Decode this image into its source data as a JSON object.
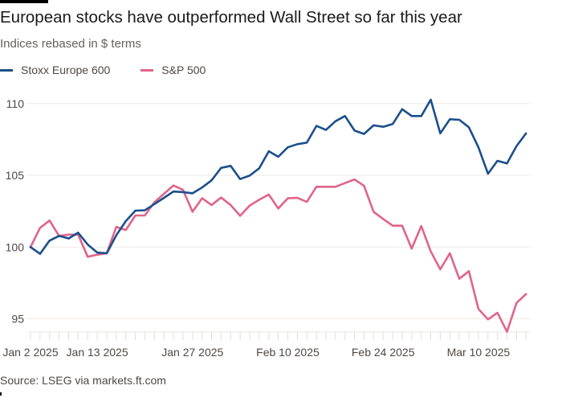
{
  "chart_data": {
    "type": "line",
    "title": "European stocks have outperformed Wall Street so far this year",
    "subtitle": "Indices rebased in $ terms",
    "xlabel": "",
    "ylabel": "",
    "ylim": [
      94,
      110.6
    ],
    "yticks": [
      95,
      100,
      105,
      110
    ],
    "grid": true,
    "legend_placement": "top-left",
    "x_count": 53,
    "xticks": [
      {
        "index": 0,
        "label": "Jan 2 2025"
      },
      {
        "index": 7,
        "label": "Jan 13 2025"
      },
      {
        "index": 17,
        "label": "Jan 27 2025"
      },
      {
        "index": 27,
        "label": "Feb 10 2025"
      },
      {
        "index": 37,
        "label": "Feb 24 2025"
      },
      {
        "index": 47,
        "label": "Mar 10 2025"
      }
    ],
    "series": [
      {
        "name": "Stoxx Europe 600",
        "color": "#1b4f8c",
        "values": [
          100.0,
          99.53,
          100.45,
          100.78,
          100.6,
          101.0,
          100.18,
          99.62,
          99.57,
          100.82,
          101.81,
          102.54,
          102.56,
          103.0,
          103.43,
          103.87,
          103.83,
          103.75,
          104.15,
          104.65,
          105.52,
          105.66,
          104.74,
          104.98,
          105.49,
          106.68,
          106.29,
          106.95,
          107.17,
          107.28,
          108.44,
          108.16,
          108.77,
          109.13,
          108.12,
          107.88,
          108.48,
          108.38,
          108.57,
          109.61,
          109.13,
          109.13,
          110.27,
          107.92,
          108.91,
          108.87,
          108.35,
          106.95,
          105.11,
          106.01,
          105.83,
          107.04,
          107.92
        ]
      },
      {
        "name": "S&P 500",
        "color": "#e0648a",
        "values": [
          100.0,
          101.34,
          101.85,
          100.78,
          100.87,
          100.87,
          99.33,
          99.47,
          99.57,
          101.4,
          101.19,
          102.2,
          102.2,
          103.12,
          103.71,
          104.29,
          103.99,
          102.46,
          103.4,
          102.93,
          103.45,
          102.93,
          102.18,
          102.89,
          103.3,
          103.66,
          102.69,
          103.4,
          103.43,
          103.15,
          104.2,
          104.2,
          104.2,
          104.46,
          104.71,
          104.27,
          102.46,
          101.96,
          101.49,
          101.49,
          99.89,
          101.47,
          99.7,
          98.45,
          99.57,
          97.79,
          98.32,
          95.69,
          94.96,
          95.42,
          94.1,
          96.11,
          96.73
        ]
      }
    ]
  },
  "source": "Source: LSEG via markets.ft.com"
}
